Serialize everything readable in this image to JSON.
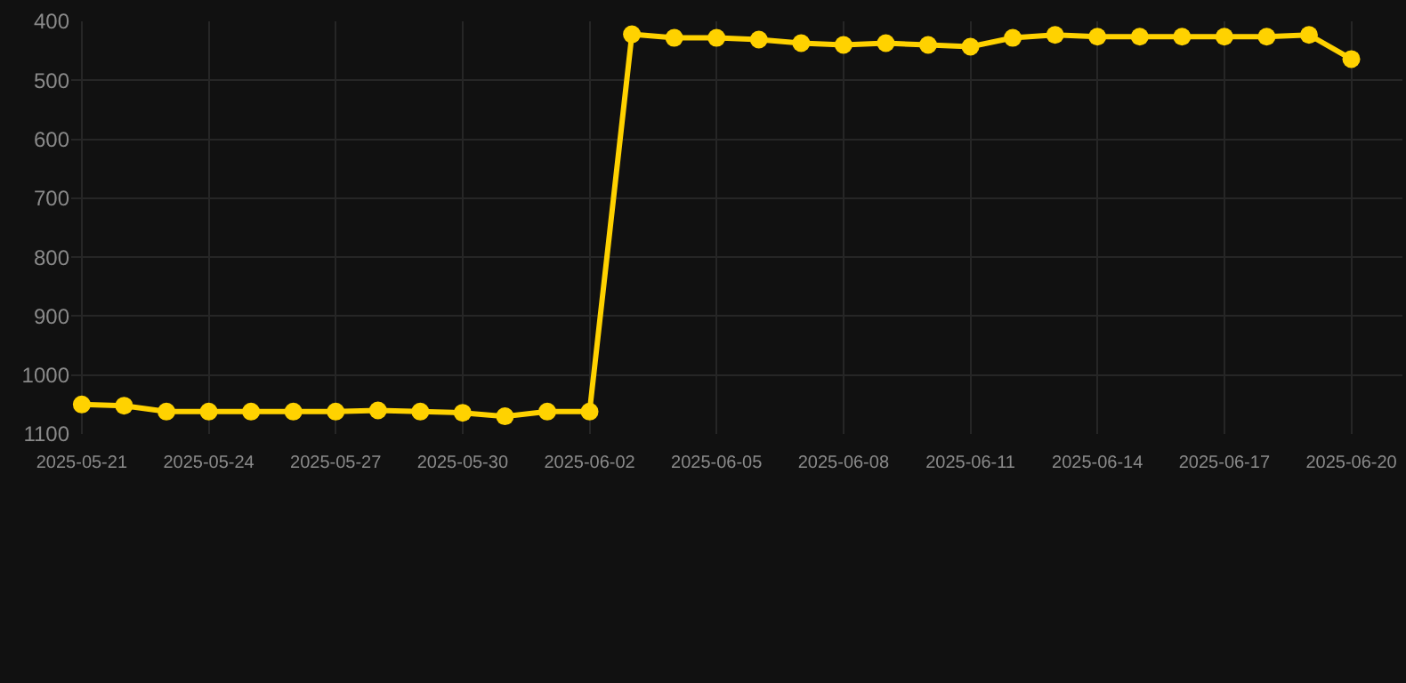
{
  "chart_data": {
    "type": "line",
    "x": [
      "2025-05-21",
      "2025-05-22",
      "2025-05-23",
      "2025-05-24",
      "2025-05-25",
      "2025-05-26",
      "2025-05-27",
      "2025-05-28",
      "2025-05-29",
      "2025-05-30",
      "2025-05-31",
      "2025-06-01",
      "2025-06-02",
      "2025-06-03",
      "2025-06-04",
      "2025-06-05",
      "2025-06-06",
      "2025-06-07",
      "2025-06-08",
      "2025-06-09",
      "2025-06-10",
      "2025-06-11",
      "2025-06-12",
      "2025-06-13",
      "2025-06-14",
      "2025-06-15",
      "2025-06-16",
      "2025-06-17",
      "2025-06-18",
      "2025-06-19",
      "2025-06-20"
    ],
    "series": [
      {
        "color": "#ffd200",
        "values": [
          1050,
          1052,
          1062,
          1062,
          1062,
          1062,
          1062,
          1060,
          1062,
          1064,
          1070,
          1062,
          1062,
          422,
          428,
          428,
          431,
          437,
          440,
          437,
          440,
          443,
          428,
          423,
          426,
          426,
          426,
          426,
          426,
          423,
          464
        ]
      }
    ],
    "xlim": [
      "2025-05-20T18:00",
      "2025-06-21T05:00"
    ],
    "xticks": [
      {
        "value": "2025-05-21",
        "label": "2025-05-21"
      },
      {
        "value": "2025-05-24",
        "label": "2025-05-24"
      },
      {
        "value": "2025-05-27",
        "label": "2025-05-27"
      },
      {
        "value": "2025-05-30",
        "label": "2025-05-30"
      },
      {
        "value": "2025-06-02",
        "label": "2025-06-02"
      },
      {
        "value": "2025-06-05",
        "label": "2025-06-05"
      },
      {
        "value": "2025-06-08",
        "label": "2025-06-08"
      },
      {
        "value": "2025-06-11",
        "label": "2025-06-11"
      },
      {
        "value": "2025-06-14",
        "label": "2025-06-14"
      },
      {
        "value": "2025-06-17",
        "label": "2025-06-17"
      },
      {
        "value": "2025-06-20",
        "label": "2025-06-20"
      }
    ],
    "ylim": [
      1100,
      400
    ],
    "yticks": [
      400,
      500,
      600,
      700,
      800,
      900,
      1000,
      1100
    ],
    "grid": true,
    "marker": "circle",
    "line_style": "solid"
  }
}
